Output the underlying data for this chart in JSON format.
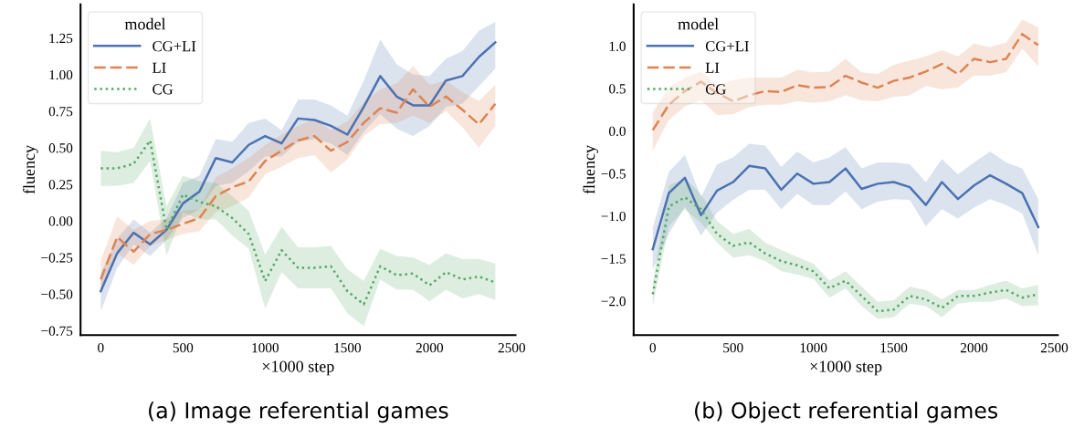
{
  "chart_data": [
    {
      "type": "line",
      "xlabel": "×1000 step",
      "ylabel": "fluency",
      "legend_title": "model",
      "legend": "top left",
      "grid": false,
      "annotations": [
        "(a) Image referential games"
      ],
      "x": [
        0,
        100,
        200,
        300,
        400,
        500,
        600,
        700,
        800,
        900,
        1000,
        1100,
        1200,
        1300,
        1400,
        1500,
        1600,
        1700,
        1800,
        1900,
        2000,
        2100,
        2200,
        2300,
        2400
      ],
      "xlim": [
        -123,
        2523
      ],
      "xticks": [
        0,
        500,
        1000,
        1500,
        2000,
        2500
      ],
      "ylim": [
        -0.78,
        1.48
      ],
      "yticks": [
        {
          "value": -0.75,
          "label": "−0.75"
        },
        {
          "value": -0.5,
          "label": "−0.50"
        },
        {
          "value": -0.25,
          "label": "−0.25"
        },
        {
          "value": 0,
          "label": "0.00"
        },
        {
          "value": 0.25,
          "label": "0.25"
        },
        {
          "value": 0.5,
          "label": "0.50"
        },
        {
          "value": 0.75,
          "label": "0.75"
        },
        {
          "value": 1.0,
          "label": "1.00"
        },
        {
          "value": 1.25,
          "label": "1.25"
        }
      ],
      "series": [
        {
          "name": "CG+LI",
          "color": "#4c72b0",
          "line_style": "solid",
          "values": [
            -0.48,
            -0.22,
            -0.08,
            -0.16,
            -0.06,
            0.12,
            0.2,
            0.43,
            0.4,
            0.52,
            0.58,
            0.53,
            0.7,
            0.69,
            0.65,
            0.59,
            0.78,
            0.99,
            0.85,
            0.79,
            0.79,
            0.96,
            0.99,
            1.12,
            1.22
          ],
          "lower": [
            -0.62,
            -0.32,
            -0.16,
            -0.24,
            -0.13,
            0.02,
            0.08,
            0.24,
            0.26,
            0.34,
            0.44,
            0.44,
            0.54,
            0.56,
            0.53,
            0.45,
            0.61,
            0.73,
            0.63,
            0.58,
            0.65,
            0.78,
            0.8,
            0.92,
            1.04
          ],
          "upper": [
            -0.36,
            -0.12,
            0.01,
            -0.08,
            0.02,
            0.26,
            0.31,
            0.56,
            0.54,
            0.67,
            0.7,
            0.62,
            0.83,
            0.83,
            0.79,
            0.72,
            0.96,
            1.24,
            1.07,
            1.0,
            0.99,
            1.11,
            1.16,
            1.3,
            1.36
          ]
        },
        {
          "name": "LI",
          "color": "#dd8452",
          "line_style": "dashed",
          "values": [
            -0.4,
            -0.11,
            -0.21,
            -0.09,
            -0.06,
            -0.02,
            0.02,
            0.17,
            0.23,
            0.27,
            0.41,
            0.48,
            0.55,
            0.58,
            0.48,
            0.54,
            0.67,
            0.77,
            0.74,
            0.9,
            0.78,
            0.85,
            0.76,
            0.66,
            0.8
          ],
          "lower": [
            -0.5,
            -0.22,
            -0.3,
            -0.17,
            -0.13,
            -0.09,
            -0.07,
            0.06,
            0.1,
            0.16,
            0.32,
            0.37,
            0.43,
            0.45,
            0.33,
            0.42,
            0.58,
            0.66,
            0.67,
            0.72,
            0.67,
            0.75,
            0.64,
            0.5,
            0.65
          ],
          "upper": [
            -0.27,
            0.03,
            -0.06,
            0.0,
            0.01,
            0.07,
            0.08,
            0.3,
            0.36,
            0.43,
            0.52,
            0.59,
            0.65,
            0.7,
            0.62,
            0.68,
            0.81,
            0.9,
            0.94,
            1.06,
            0.93,
            0.96,
            0.88,
            0.82,
            0.93
          ]
        },
        {
          "name": "CG",
          "color": "#55a868",
          "line_style": "dotted",
          "values": [
            0.36,
            0.36,
            0.39,
            0.55,
            -0.06,
            0.18,
            0.13,
            0.1,
            0.02,
            -0.09,
            -0.41,
            -0.2,
            -0.32,
            -0.32,
            -0.31,
            -0.48,
            -0.57,
            -0.31,
            -0.37,
            -0.36,
            -0.44,
            -0.35,
            -0.4,
            -0.38,
            -0.42
          ],
          "lower": [
            0.24,
            0.24,
            0.26,
            0.41,
            -0.24,
            0.06,
            0.01,
            0.01,
            -0.1,
            -0.19,
            -0.6,
            -0.35,
            -0.46,
            -0.46,
            -0.46,
            -0.63,
            -0.72,
            -0.4,
            -0.47,
            -0.47,
            -0.55,
            -0.47,
            -0.53,
            -0.5,
            -0.54
          ],
          "upper": [
            0.48,
            0.47,
            0.5,
            0.7,
            0.1,
            0.31,
            0.27,
            0.26,
            0.17,
            0.07,
            -0.23,
            -0.04,
            -0.18,
            -0.18,
            -0.17,
            -0.33,
            -0.41,
            -0.19,
            -0.24,
            -0.25,
            -0.3,
            -0.22,
            -0.26,
            -0.26,
            -0.29
          ]
        }
      ]
    },
    {
      "type": "line",
      "xlabel": "×1000 step",
      "ylabel": "fluency",
      "legend_title": "model",
      "legend": "top left",
      "grid": false,
      "annotations": [
        "(b) Object referential games"
      ],
      "x": [
        0,
        100,
        200,
        300,
        400,
        500,
        600,
        700,
        800,
        900,
        1000,
        1100,
        1200,
        1300,
        1400,
        1500,
        1600,
        1700,
        1800,
        1900,
        2000,
        2100,
        2200,
        2300,
        2400
      ],
      "xlim": [
        -119,
        2522
      ],
      "xticks": [
        0,
        500,
        1000,
        1500,
        2000,
        2500
      ],
      "ylim": [
        -2.4,
        1.49
      ],
      "yticks": [
        {
          "value": -2.0,
          "label": "−2.0"
        },
        {
          "value": -1.5,
          "label": "−1.5"
        },
        {
          "value": -1.0,
          "label": "−1.0"
        },
        {
          "value": -0.5,
          "label": "−0.5"
        },
        {
          "value": 0,
          "label": "0.0"
        },
        {
          "value": 0.5,
          "label": "0.5"
        },
        {
          "value": 1.0,
          "label": "1.0"
        }
      ],
      "series": [
        {
          "name": "CG+LI",
          "color": "#4c72b0",
          "line_style": "solid",
          "values": [
            -1.39,
            -0.73,
            -0.55,
            -0.99,
            -0.7,
            -0.6,
            -0.41,
            -0.44,
            -0.69,
            -0.5,
            -0.62,
            -0.6,
            -0.44,
            -0.68,
            -0.62,
            -0.6,
            -0.66,
            -0.87,
            -0.6,
            -0.8,
            -0.64,
            -0.52,
            -0.62,
            -0.73,
            -1.13
          ],
          "lower": [
            -1.63,
            -1.21,
            -0.89,
            -1.23,
            -0.96,
            -0.81,
            -0.69,
            -0.69,
            -0.92,
            -0.74,
            -0.87,
            -0.87,
            -0.71,
            -0.92,
            -0.83,
            -0.8,
            -0.81,
            -1.12,
            -0.92,
            -1.03,
            -0.9,
            -0.8,
            -0.87,
            -0.97,
            -1.46
          ],
          "upper": [
            -1.14,
            -0.48,
            -0.28,
            -0.78,
            -0.39,
            -0.31,
            -0.15,
            -0.17,
            -0.42,
            -0.24,
            -0.37,
            -0.31,
            -0.19,
            -0.44,
            -0.37,
            -0.37,
            -0.39,
            -0.6,
            -0.33,
            -0.51,
            -0.37,
            -0.24,
            -0.37,
            -0.44,
            -0.8
          ]
        },
        {
          "name": "LI",
          "color": "#dd8452",
          "line_style": "dashed",
          "values": [
            0.01,
            0.31,
            0.47,
            0.58,
            0.45,
            0.35,
            0.42,
            0.47,
            0.46,
            0.54,
            0.51,
            0.52,
            0.65,
            0.57,
            0.51,
            0.59,
            0.63,
            0.7,
            0.79,
            0.67,
            0.85,
            0.81,
            0.85,
            1.14,
            1.01
          ],
          "lower": [
            -0.23,
            0.13,
            0.29,
            0.36,
            0.19,
            0.2,
            0.28,
            0.31,
            0.31,
            0.35,
            0.33,
            0.35,
            0.42,
            0.36,
            0.35,
            0.4,
            0.42,
            0.53,
            0.49,
            0.51,
            0.65,
            0.65,
            0.69,
            0.97,
            0.76
          ],
          "upper": [
            0.22,
            0.51,
            0.63,
            0.7,
            0.54,
            0.6,
            0.63,
            0.63,
            0.63,
            0.72,
            0.69,
            0.7,
            0.85,
            0.69,
            0.67,
            0.78,
            0.83,
            0.88,
            0.95,
            0.88,
            1.03,
            0.99,
            1.04,
            1.31,
            1.22
          ]
        },
        {
          "name": "CG",
          "color": "#55a868",
          "line_style": "dotted",
          "values": [
            -1.92,
            -0.89,
            -0.78,
            -0.92,
            -1.21,
            -1.35,
            -1.31,
            -1.44,
            -1.53,
            -1.58,
            -1.65,
            -1.85,
            -1.76,
            -1.94,
            -2.12,
            -2.1,
            -1.94,
            -1.98,
            -2.08,
            -1.94,
            -1.94,
            -1.9,
            -1.87,
            -1.96,
            -1.92
          ],
          "lower": [
            -2.06,
            -1.12,
            -0.92,
            -1.08,
            -1.31,
            -1.49,
            -1.46,
            -1.53,
            -1.65,
            -1.69,
            -1.74,
            -1.96,
            -1.85,
            -2.06,
            -2.21,
            -2.19,
            -2.03,
            -2.06,
            -2.19,
            -2.03,
            -2.01,
            -2.01,
            -1.97,
            -2.06,
            -2.05
          ],
          "upper": [
            -1.78,
            -0.64,
            -0.56,
            -0.74,
            -1.06,
            -1.21,
            -1.15,
            -1.31,
            -1.4,
            -1.48,
            -1.56,
            -1.76,
            -1.65,
            -1.83,
            -2.01,
            -1.99,
            -1.83,
            -1.87,
            -1.98,
            -1.87,
            -1.87,
            -1.81,
            -1.76,
            -1.85,
            -1.81
          ]
        }
      ]
    }
  ]
}
